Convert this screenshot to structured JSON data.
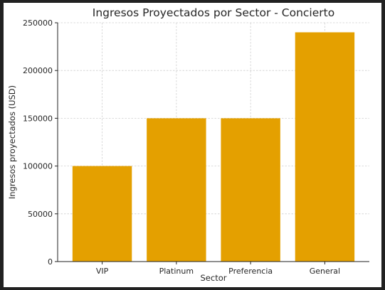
{
  "chart_data": {
    "type": "bar",
    "title": "Ingresos Proyectados por Sector - Concierto",
    "xlabel": "Sector",
    "ylabel": "Ingresos proyectados (USD)",
    "categories": [
      "VIP",
      "Platinum",
      "Preferencia",
      "General"
    ],
    "values": [
      100000,
      150000,
      150000,
      240000
    ],
    "ylim": [
      0,
      250000
    ],
    "yticks": [
      0,
      50000,
      100000,
      150000,
      200000,
      250000
    ],
    "ytick_labels": [
      "0",
      "50000",
      "100000",
      "150000",
      "200000",
      "250000"
    ],
    "grid": true,
    "legend": "none",
    "bar_color": "#E4A000"
  }
}
